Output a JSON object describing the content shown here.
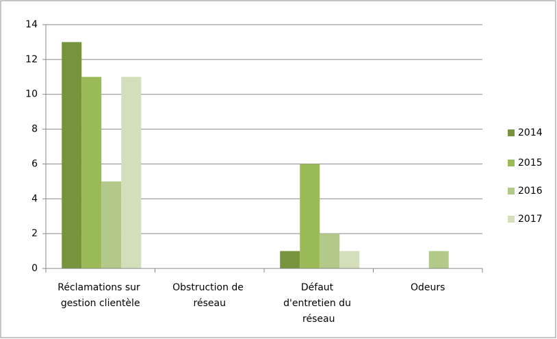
{
  "chart_data": {
    "type": "bar",
    "categories": [
      "Réclamations sur gestion clientèle",
      "Obstruction de réseau",
      "Défaut d'entretien du réseau",
      "Odeurs"
    ],
    "series": [
      {
        "name": "2014",
        "color": "#77933c",
        "values": [
          13,
          0,
          1,
          0
        ]
      },
      {
        "name": "2015",
        "color": "#9bbb59",
        "values": [
          11,
          0,
          6,
          0
        ]
      },
      {
        "name": "2016",
        "color": "#b3c98a",
        "values": [
          5,
          0,
          2,
          1
        ]
      },
      {
        "name": "2017",
        "color": "#d3dfba",
        "values": [
          11,
          0,
          1,
          0
        ]
      }
    ],
    "ylim": [
      0,
      14
    ],
    "yticks": [
      0,
      2,
      4,
      6,
      8,
      10,
      12,
      14
    ],
    "grid": true,
    "legend": "right"
  }
}
